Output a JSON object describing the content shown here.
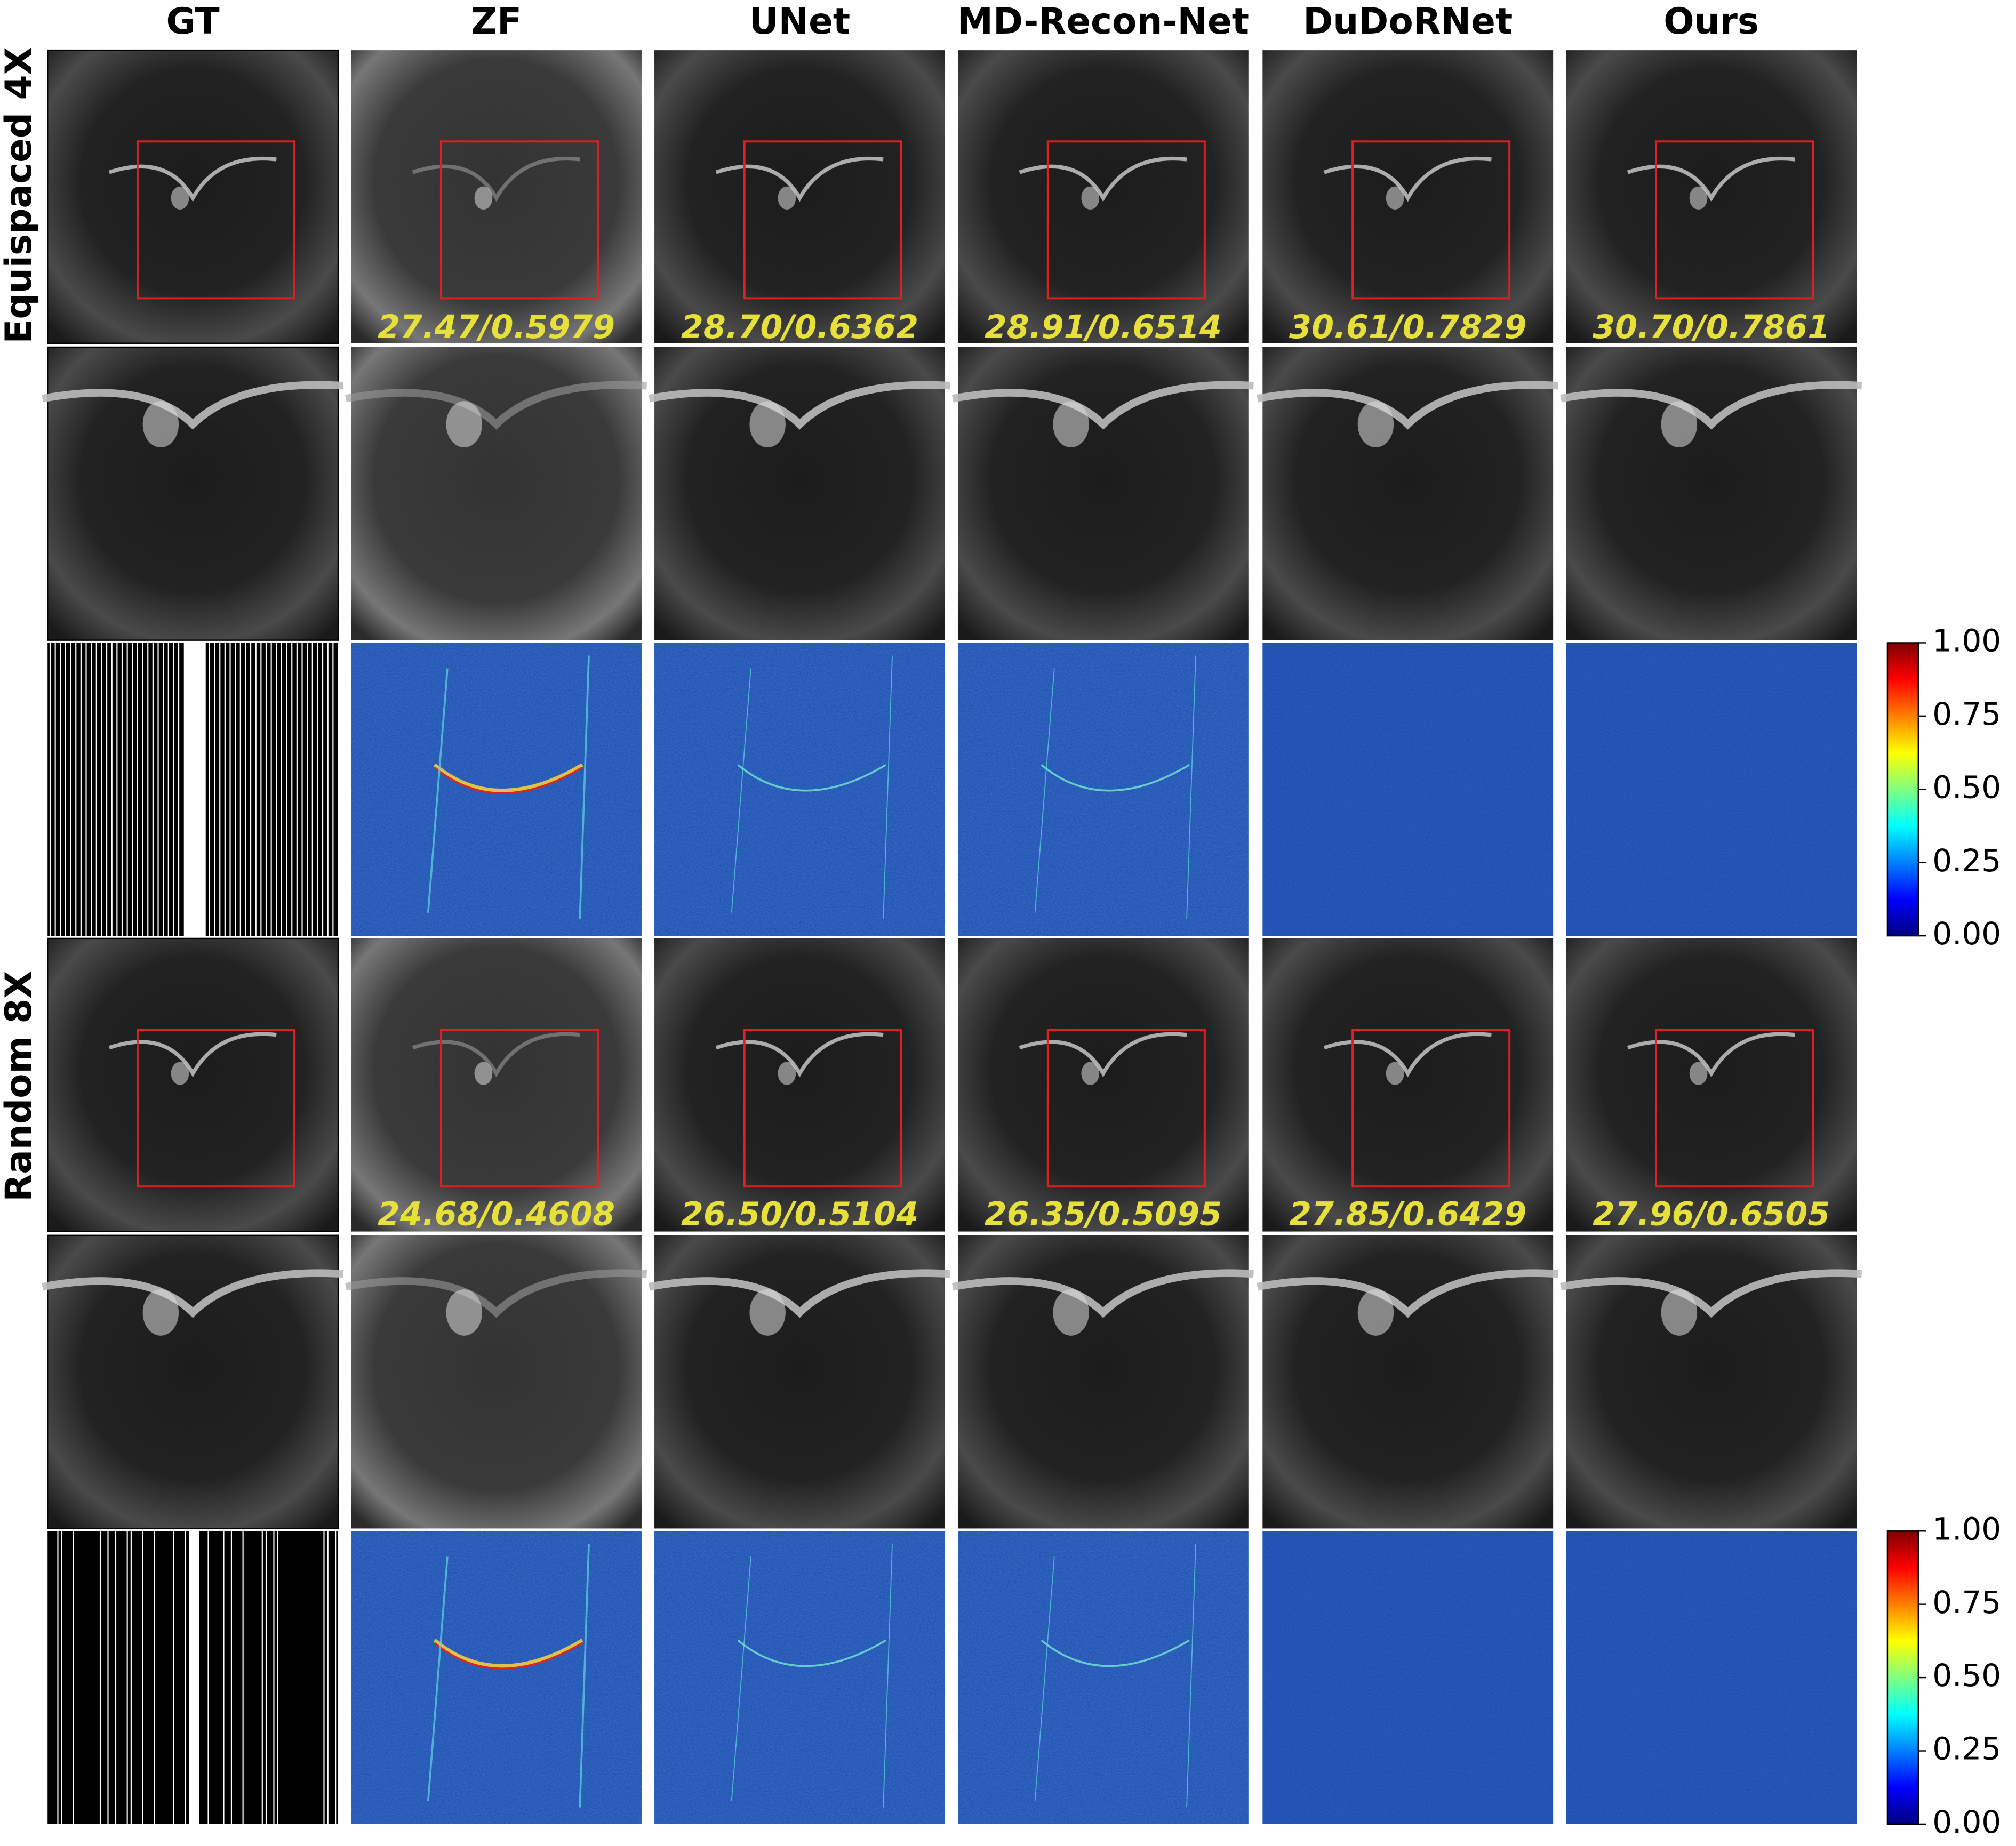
{
  "columns": [
    "GT",
    "ZF",
    "UNet",
    "MD-Recon-Net",
    "DuDoRNet",
    "Ours"
  ],
  "row_labels": [
    "Equispaced 4X",
    "Random 8X"
  ],
  "metrics": [
    [
      "27.47/0.5979",
      "28.70/0.6362",
      "28.91/0.6514",
      "30.61/0.7829",
      "30.70/0.7861"
    ],
    [
      "24.68/0.4608",
      "26.50/0.5104",
      "26.35/0.5095",
      "27.85/0.6429",
      "27.96/0.6505"
    ]
  ],
  "colorbar_ticks": [
    {
      "value": 0,
      "label": "0.00"
    },
    {
      "value": 0.25,
      "label": "0.25"
    },
    {
      "value": 0.5,
      "label": "0.50"
    },
    {
      "value": 0.75,
      "label": "0.75"
    },
    {
      "value": 1,
      "label": "1.00"
    }
  ]
}
